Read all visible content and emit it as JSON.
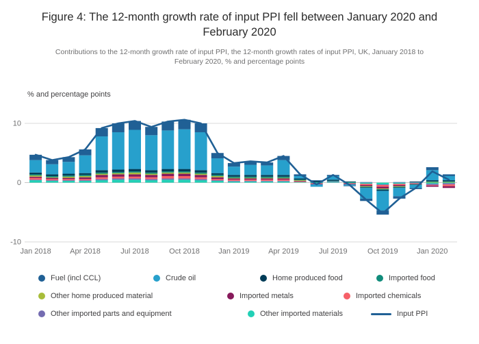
{
  "header": {
    "title": "Figure 4: The 12-month growth rate of input PPI fell between January 2020 and February 2020",
    "subtitle": "Contributions to the 12-month growth rate of input PPI, the 12-month growth rates of input PPI, UK, January 2018 to February 2020, % and percentage points"
  },
  "chart_data": {
    "type": "bar",
    "subtype": "stacked-bar-with-line",
    "axis_label": "% and percentage points",
    "ylim": [
      -10,
      10
    ],
    "yticks": [
      10,
      0,
      -10
    ],
    "xtick_every": 3,
    "grid": "horizontal-only",
    "legend_position": "bottom",
    "x": [
      "Jan 2018",
      "Feb 2018",
      "Mar 2018",
      "Apr 2018",
      "May 2018",
      "Jun 2018",
      "Jul 2018",
      "Aug 2018",
      "Sep 2018",
      "Oct 2018",
      "Nov 2018",
      "Dec 2018",
      "Jan 2019",
      "Feb 2019",
      "Mar 2019",
      "Apr 2019",
      "May 2019",
      "Jun 2019",
      "Jul 2019",
      "Aug 2019",
      "Sep 2019",
      "Oct 2019",
      "Nov 2019",
      "Dec 2019",
      "Jan 2020",
      "Feb 2020"
    ],
    "xtick_labels": [
      "Jan 2018",
      "Apr 2018",
      "Jul 2018",
      "Oct 2018",
      "Jan 2019",
      "Apr 2019",
      "Jul 2019",
      "Oct 2019",
      "Jan 2020"
    ],
    "series": [
      {
        "name": "Fuel (incl CCL)",
        "color": "#206095",
        "values": [
          0.9,
          0.7,
          0.8,
          1.0,
          1.4,
          1.5,
          1.5,
          1.4,
          1.5,
          1.6,
          1.5,
          0.9,
          0.6,
          0.6,
          0.5,
          0.7,
          0.3,
          0.1,
          0.2,
          -0.1,
          -0.4,
          -0.7,
          -0.4,
          -0.2,
          0.5,
          0.3
        ]
      },
      {
        "name": "Crude oil",
        "color": "#27a0cc",
        "values": [
          2.1,
          1.7,
          2.0,
          3.0,
          5.7,
          6.3,
          6.6,
          5.9,
          6.5,
          6.7,
          6.4,
          2.5,
          1.4,
          1.7,
          1.6,
          2.5,
          0.4,
          -0.4,
          0.6,
          -0.2,
          -1.8,
          -3.3,
          -1.4,
          -0.5,
          1.7,
          0.7
        ]
      },
      {
        "name": "Home produced food",
        "color": "#003c57",
        "values": [
          0.3,
          0.3,
          0.3,
          0.3,
          0.4,
          0.4,
          0.4,
          0.4,
          0.4,
          0.4,
          0.4,
          0.3,
          0.3,
          0.3,
          0.3,
          0.3,
          0.2,
          0.2,
          0.2,
          0.1,
          -0.1,
          -0.2,
          -0.1,
          0.1,
          0.2,
          0.2
        ]
      },
      {
        "name": "Imported food",
        "color": "#118c7b",
        "values": [
          0.2,
          0.2,
          0.2,
          0.2,
          0.2,
          0.2,
          0.2,
          0.2,
          0.2,
          0.2,
          0.2,
          0.2,
          0.2,
          0.2,
          0.2,
          0.2,
          0.1,
          0.1,
          0.1,
          0.1,
          -0.1,
          -0.1,
          -0.1,
          -0.1,
          0.1,
          0.1
        ]
      },
      {
        "name": "Other home produced material",
        "color": "#a8bd3a",
        "values": [
          0.2,
          0.1,
          0.2,
          0.2,
          0.2,
          0.2,
          0.3,
          0.2,
          0.2,
          0.2,
          0.2,
          0.2,
          0.1,
          0.1,
          0.1,
          0.1,
          0.1,
          0,
          0,
          0,
          -0.1,
          -0.1,
          -0.1,
          0,
          0.1,
          0.1
        ]
      },
      {
        "name": "Imported metals",
        "color": "#871a5b",
        "values": [
          0.2,
          0.2,
          0.2,
          0.3,
          0.4,
          0.4,
          0.4,
          0.4,
          0.4,
          0.4,
          0.4,
          0.3,
          0.2,
          0.2,
          0.2,
          0.2,
          0.1,
          -0.1,
          0,
          -0.1,
          -0.2,
          -0.3,
          -0.2,
          -0.1,
          -0.2,
          -0.3
        ]
      },
      {
        "name": "Imported chemicals",
        "color": "#f66068",
        "values": [
          0.3,
          0.2,
          0.2,
          0.2,
          0.3,
          0.3,
          0.3,
          0.3,
          0.4,
          0.4,
          0.3,
          0.2,
          0.2,
          0.2,
          0.2,
          0.2,
          0.1,
          -0.1,
          0,
          -0.1,
          -0.2,
          -0.3,
          -0.2,
          -0.1,
          -0.1,
          -0.3
        ]
      },
      {
        "name": "Other imported parts and equipment",
        "color": "#746cb1",
        "values": [
          0.1,
          0.1,
          0.1,
          0.1,
          0.2,
          0.2,
          0.2,
          0.2,
          0.2,
          0.2,
          0.2,
          0.1,
          0.1,
          0.1,
          0.1,
          0.1,
          0,
          0,
          0.1,
          0,
          0.1,
          -0.1,
          0.1,
          0.1,
          -0.2,
          -0.2
        ]
      },
      {
        "name": "Other imported materials",
        "color": "#22d0b6",
        "values": [
          0.4,
          0.3,
          0.3,
          0.3,
          0.4,
          0.5,
          0.5,
          0.4,
          0.5,
          0.5,
          0.4,
          0.3,
          0.2,
          0.2,
          0.2,
          0.2,
          0.1,
          -0.1,
          0.1,
          -0.1,
          -0.2,
          -0.3,
          -0.2,
          -0.1,
          -0.2,
          -0.1
        ]
      }
    ],
    "line": {
      "name": "Input PPI",
      "color": "#206095",
      "values": [
        4.7,
        3.8,
        4.3,
        5.6,
        9.2,
        10.0,
        10.4,
        9.4,
        10.3,
        10.6,
        10.0,
        5.0,
        3.3,
        3.6,
        3.4,
        4.5,
        1.4,
        -0.3,
        1.3,
        -0.4,
        -2.9,
        -5.2,
        -2.7,
        -0.9,
        1.9,
        0.5
      ]
    },
    "stack_order": [
      8,
      7,
      6,
      5,
      4,
      3,
      2,
      1,
      0
    ],
    "legend_rows": [
      [
        0,
        1,
        2,
        3
      ],
      [
        4,
        5,
        6
      ],
      [
        7,
        8,
        9
      ]
    ],
    "colors": {
      "grid": "#d9d9d9",
      "zero_line": "#c6c6c6",
      "axis_text": "#707071"
    }
  }
}
